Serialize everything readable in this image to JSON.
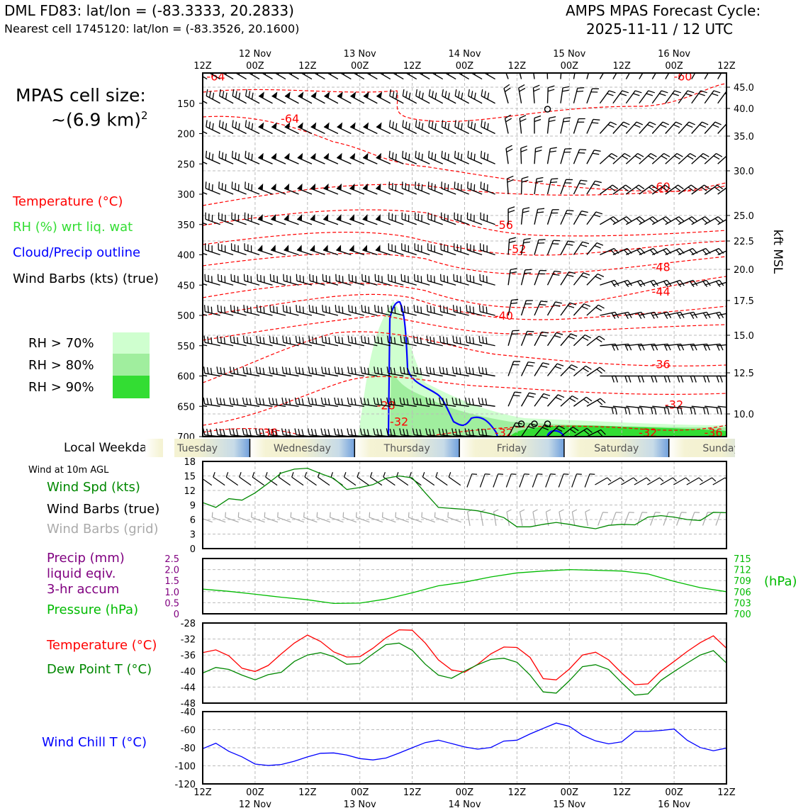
{
  "header": {
    "station_line": "DML FD83: lat/lon = (-83.3333, 20.2833)",
    "nearest_line": "Nearest cell 1745120: lat/lon = (-83.3526, 20.1600)",
    "cycle_line1": "AMPS MPAS Forecast Cycle:",
    "cycle_line2": "2025-11-11 / 12 UTC"
  },
  "cell_size": {
    "line1": "MPAS cell size:",
    "line2": "~(6.9 km)",
    "exponent": "2"
  },
  "legend": {
    "temperature": "Temperature (°C)",
    "rh": "RH (%) wrt liq. wat",
    "cloud": "Cloud/Precip outline",
    "wind": "Wind Barbs (kts) (true)",
    "rh70": "RH > 70%",
    "rh80": "RH > 80%",
    "rh90": "RH > 90%"
  },
  "colors": {
    "temperature": "#ff0000",
    "rh_label": "#33dd33",
    "cloud": "#0000ff",
    "rh70": "#cfffcf",
    "rh80": "#a0ee9e",
    "rh90": "#33dd33",
    "speed": "#008800",
    "pressure": "#00bb00",
    "precip": "#800080",
    "dewpoint": "#008800",
    "windchill": "#0000ff",
    "grid_barb": "#aaaaaa"
  },
  "time_axis": {
    "hour_labels": [
      "12Z",
      "00Z",
      "12Z",
      "00Z",
      "12Z",
      "00Z",
      "12Z",
      "00Z",
      "12Z",
      "00Z",
      "12Z"
    ],
    "date_labels": [
      "12 Nov",
      "13 Nov",
      "14 Nov",
      "15 Nov",
      "16 Nov"
    ]
  },
  "weekday": {
    "title": "Local Weekday",
    "days": [
      "Tuesday",
      "Wednesday",
      "Thursday",
      "Friday",
      "Saturday",
      "Sunday"
    ]
  },
  "panels": {
    "wind10": {
      "title": "Wind at 10m AGL",
      "speed_label": "Wind Spd (kts)",
      "barbs_true_label": "Wind Barbs (true)",
      "barbs_grid_label": "Wind Barbs (grid)"
    },
    "precip": {
      "label1": "Precip (mm)",
      "label2": "liquid eqiv.",
      "label3": "3-hr accum",
      "pressure_label": "Pressure (hPa)",
      "hpa_unit": "(hPa)"
    },
    "temp": {
      "temp_label": "Temperature (°C)",
      "dew_label": "Dew Point T (°C)"
    },
    "chill": {
      "label": "Wind Chill T (°C)"
    }
  },
  "chart_data": [
    {
      "type": "contour",
      "panel": "upper-air",
      "x_unit": "forecast hour",
      "xlim": [
        0,
        120
      ],
      "y_left_ticks": [
        "150",
        "200",
        "250",
        "300",
        "350",
        "400",
        "450",
        "500",
        "550",
        "600",
        "650",
        "700"
      ],
      "y_right_ticks": [
        "45.0",
        "40.0",
        "35.0",
        "30.0",
        "25.0",
        "22.5",
        "20.0",
        "17.5",
        "15.0",
        "12.5",
        "10.0"
      ],
      "y_right_label": "kft MSL",
      "temperature_contour_labels": [
        {
          "text": "-64",
          "x": 3,
          "p": 105
        },
        {
          "text": "-64",
          "x": 20,
          "p": 175
        },
        {
          "text": "-60",
          "x": 110,
          "p": 105
        },
        {
          "text": "-60",
          "x": 105,
          "p": 287
        },
        {
          "text": "-56",
          "x": 69,
          "p": 350
        },
        {
          "text": "-52",
          "x": 72,
          "p": 390
        },
        {
          "text": "-48",
          "x": 105,
          "p": 420
        },
        {
          "text": "-44",
          "x": 105,
          "p": 460
        },
        {
          "text": "-40",
          "x": 69,
          "p": 500
        },
        {
          "text": "-36",
          "x": 105,
          "p": 580
        },
        {
          "text": "-32",
          "x": 108,
          "p": 647
        },
        {
          "text": "-28",
          "x": 42,
          "p": 648
        },
        {
          "text": "-32",
          "x": 45,
          "p": 675
        },
        {
          "text": "-36",
          "x": 15,
          "p": 693
        },
        {
          "text": "-32",
          "x": 69,
          "p": 693
        },
        {
          "text": "-32",
          "x": 102,
          "p": 693
        },
        {
          "text": "-36",
          "x": 117,
          "p": 693
        }
      ],
      "wind_barb_rows_hpa": [
        110,
        150,
        200,
        250,
        300,
        350,
        400,
        450,
        500,
        550,
        600,
        650,
        700
      ]
    },
    {
      "type": "line",
      "panel": "wind10",
      "x": [
        0,
        3,
        6,
        9,
        12,
        15,
        18,
        21,
        24,
        27,
        30,
        33,
        36,
        39,
        42,
        45,
        48,
        51,
        54,
        57,
        60,
        63,
        66,
        69,
        72,
        75,
        78,
        81,
        84,
        87,
        90,
        93,
        96,
        99,
        102,
        105,
        108,
        111,
        114,
        117,
        120
      ],
      "series": [
        {
          "name": "Wind Spd (kts)",
          "values": [
            9.5,
            8.5,
            10.3,
            10,
            11.5,
            13.5,
            15.6,
            16.4,
            16.6,
            15.5,
            14.5,
            12.2,
            12.6,
            13.2,
            14.5,
            15,
            14.6,
            11.5,
            8.5,
            8.3,
            8.1,
            7.8,
            7.2,
            6.4,
            4.5,
            4.5,
            5.0,
            5.4,
            5.0,
            4.5,
            4.1,
            4.8,
            5.0,
            4.9,
            6.5,
            6.8,
            6.5,
            6.0,
            5.8,
            7.5,
            7.4
          ]
        }
      ],
      "ylim": [
        0,
        18
      ],
      "y_ticks": [
        0,
        3,
        6,
        9,
        12,
        15,
        18
      ]
    },
    {
      "type": "line",
      "panel": "precip-pressure",
      "x": [
        0,
        6,
        12,
        18,
        24,
        30,
        36,
        42,
        48,
        54,
        60,
        66,
        72,
        78,
        84,
        90,
        96,
        102,
        108,
        114,
        120
      ],
      "series": [
        {
          "name": "Pressure (hPa)",
          "values": [
            706.7,
            706.1,
            705.3,
            704.5,
            703.8,
            702.8,
            702.9,
            704.0,
            705.7,
            707.6,
            708.6,
            710.0,
            711.1,
            711.6,
            712.0,
            711.8,
            711.6,
            710.8,
            708.8,
            707.1,
            706.0
          ]
        }
      ],
      "y_left_ticks": [
        "0",
        "0.5",
        "1.0",
        "1.5",
        "2.0",
        "2.5"
      ],
      "y_right_ticks": [
        700,
        703,
        706,
        709,
        712,
        715
      ],
      "ylim_precip": [
        0,
        2.5
      ],
      "ylim_pressure": [
        700,
        715
      ]
    },
    {
      "type": "line",
      "panel": "temperature",
      "x": [
        0,
        3,
        6,
        9,
        12,
        15,
        18,
        21,
        24,
        27,
        30,
        33,
        36,
        39,
        42,
        45,
        48,
        51,
        54,
        57,
        60,
        63,
        66,
        69,
        72,
        75,
        78,
        81,
        84,
        87,
        90,
        93,
        96,
        99,
        102,
        105,
        108,
        111,
        114,
        117,
        120
      ],
      "series": [
        {
          "name": "Temperature (°C)",
          "values": [
            -35.4,
            -34.7,
            -36.2,
            -39.3,
            -40.1,
            -38.6,
            -35.7,
            -33.0,
            -31.0,
            -32.6,
            -35.2,
            -36.5,
            -36.4,
            -34.3,
            -31.7,
            -29.7,
            -29.8,
            -33.0,
            -37.2,
            -39.7,
            -40.3,
            -38.3,
            -35.7,
            -34.0,
            -34.1,
            -36.6,
            -41.9,
            -42.2,
            -39.5,
            -36.0,
            -35.3,
            -37.2,
            -40.5,
            -43.4,
            -43.2,
            -40.0,
            -37.6,
            -35.1,
            -32.9,
            -31.2,
            -34.3
          ]
        },
        {
          "name": "Dew Point T (°C)",
          "values": [
            -40.5,
            -39.1,
            -39.6,
            -41.0,
            -42.2,
            -40.9,
            -40.3,
            -37.6,
            -36.0,
            -35.4,
            -36.4,
            -38.3,
            -38.1,
            -35.7,
            -33.4,
            -33.0,
            -34.8,
            -38.3,
            -41.0,
            -41.8,
            -40.0,
            -38.4,
            -37.1,
            -36.8,
            -37.8,
            -41.0,
            -45.2,
            -45.5,
            -42.4,
            -38.9,
            -38.4,
            -39.6,
            -42.9,
            -46.0,
            -45.7,
            -42.3,
            -40.1,
            -38.0,
            -36.0,
            -34.9,
            -38.0
          ]
        }
      ],
      "ylim": [
        -48,
        -28
      ],
      "y_ticks": [
        -48,
        -44,
        -40,
        -36,
        -32,
        -28
      ]
    },
    {
      "type": "line",
      "panel": "windchill",
      "x": [
        0,
        3,
        6,
        9,
        12,
        15,
        18,
        21,
        24,
        27,
        30,
        33,
        36,
        39,
        42,
        45,
        48,
        51,
        54,
        57,
        60,
        63,
        66,
        69,
        72,
        75,
        78,
        81,
        84,
        87,
        90,
        93,
        96,
        99,
        102,
        105,
        108,
        111,
        114,
        117,
        120
      ],
      "series": [
        {
          "name": "Wind Chill T (°C)",
          "values": [
            -81,
            -75,
            -84,
            -90,
            -98,
            -99.6,
            -98.5,
            -94.9,
            -90.1,
            -86.1,
            -85.7,
            -88.0,
            -92.0,
            -93.5,
            -91.4,
            -85.9,
            -80.0,
            -74.3,
            -71.6,
            -75.3,
            -79.1,
            -81.6,
            -79.7,
            -72.6,
            -71.6,
            -64.7,
            -58.6,
            -52.6,
            -56.2,
            -66.2,
            -72.4,
            -75.7,
            -73.4,
            -61.9,
            -61.9,
            -60.9,
            -59.3,
            -71.8,
            -79.8,
            -83.3,
            -80.4
          ]
        }
      ],
      "ylim": [
        -120,
        -40
      ],
      "y_ticks": [
        -120,
        -100,
        -80,
        -60,
        -40
      ]
    }
  ]
}
